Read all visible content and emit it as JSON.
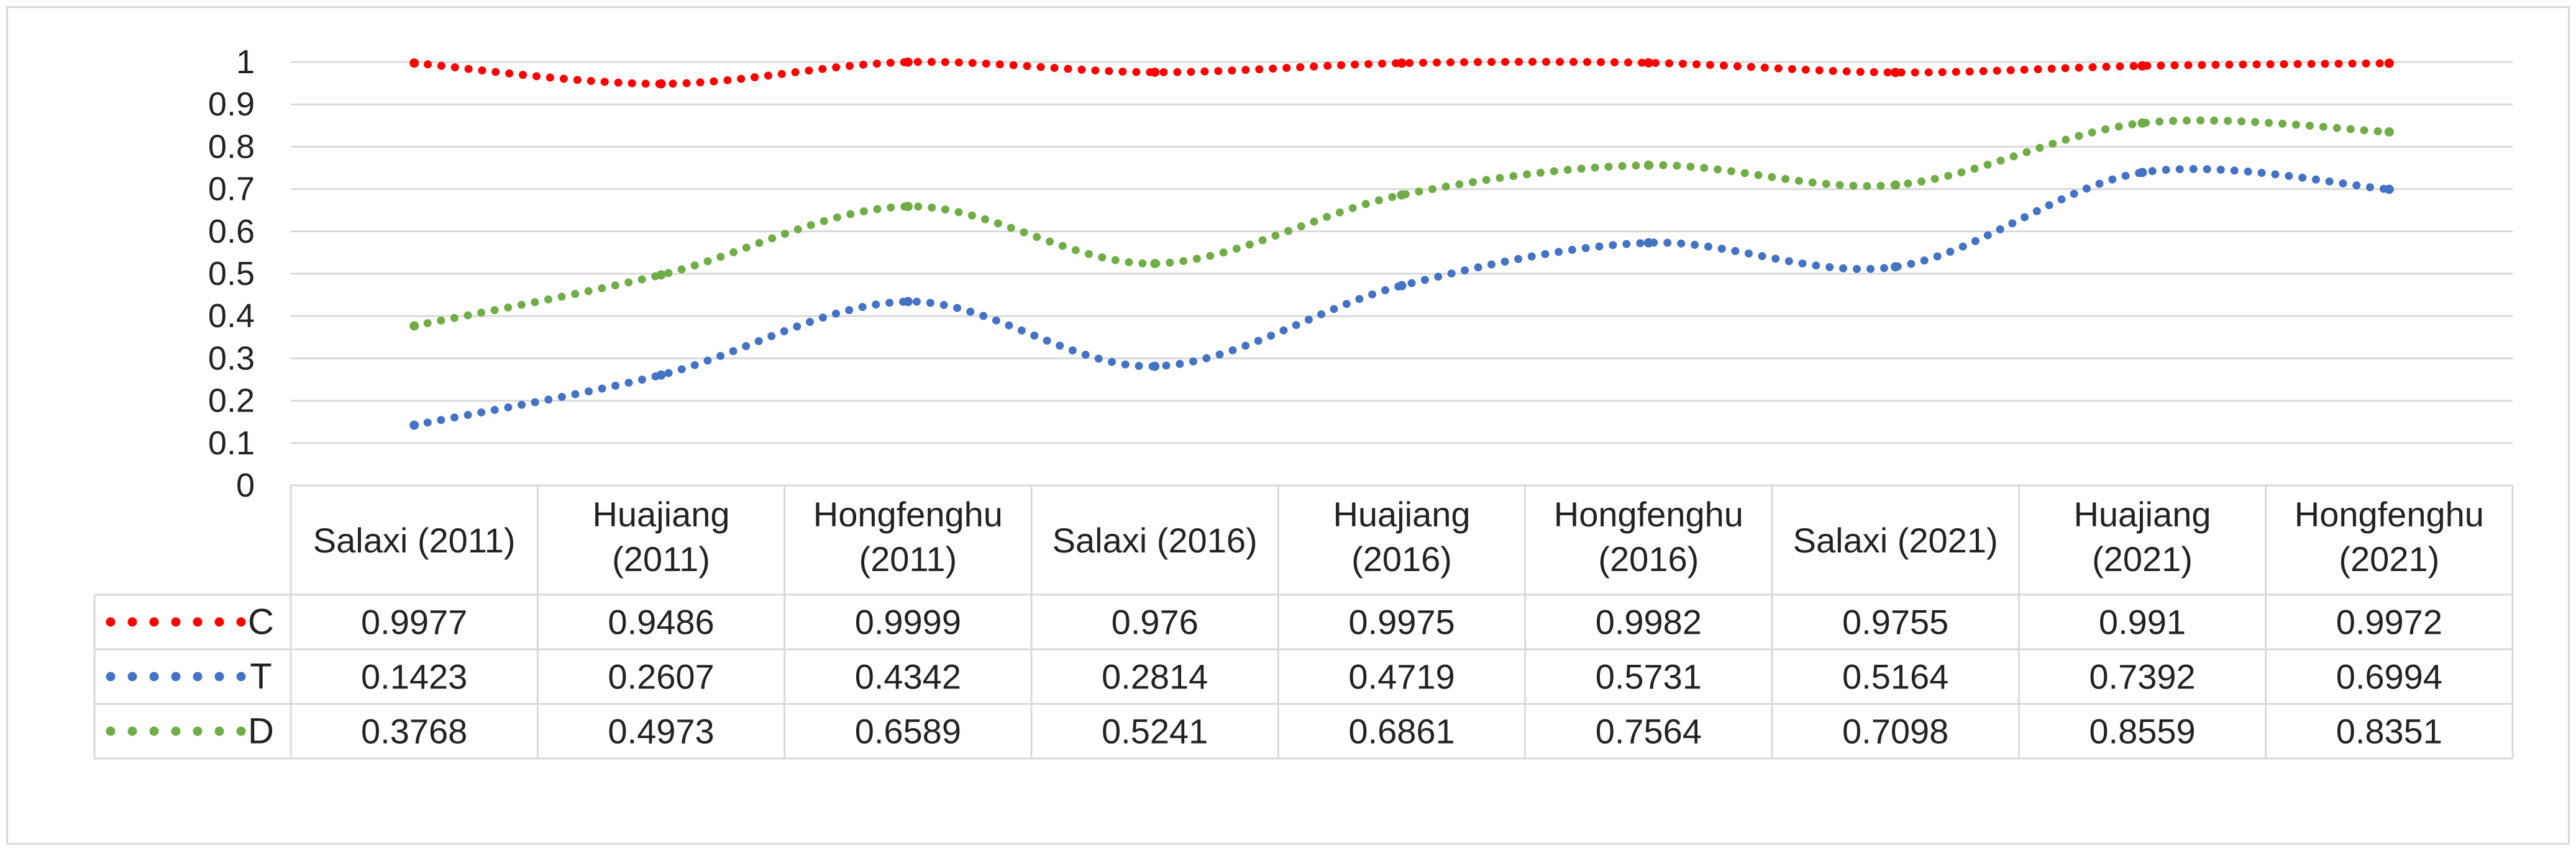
{
  "chart_data": {
    "type": "line",
    "title": "",
    "xlabel": "",
    "ylabel": "",
    "ylim": [
      0,
      1
    ],
    "yticks": [
      "0",
      "0.1",
      "0.2",
      "0.3",
      "0.4",
      "0.5",
      "0.6",
      "0.7",
      "0.8",
      "0.9",
      "1"
    ],
    "grid": true,
    "legend": "data-table-left",
    "line_style": "dotted-smooth",
    "categories": [
      "Salaxi (2011)",
      "Huajiang (2011)",
      "Hongfenghu (2011)",
      "Salaxi (2016)",
      "Huajiang (2016)",
      "Hongfenghu (2016)",
      "Salaxi (2021)",
      "Huajiang (2021)",
      "Hongfenghu (2021)"
    ],
    "series": [
      {
        "name": "C",
        "color": "#ff0000",
        "values": [
          0.9977,
          0.9486,
          0.9999,
          0.976,
          0.9975,
          0.9982,
          0.9755,
          0.991,
          0.9972
        ],
        "labels": [
          "0.9977",
          "0.9486",
          "0.9999",
          "0.976",
          "0.9975",
          "0.9982",
          "0.9755",
          "0.991",
          "0.9972"
        ]
      },
      {
        "name": "T",
        "color": "#4472c4",
        "values": [
          0.1423,
          0.2607,
          0.4342,
          0.2814,
          0.4719,
          0.5731,
          0.5164,
          0.7392,
          0.6994
        ],
        "labels": [
          "0.1423",
          "0.2607",
          "0.4342",
          "0.2814",
          "0.4719",
          "0.5731",
          "0.5164",
          "0.7392",
          "0.6994"
        ]
      },
      {
        "name": "D",
        "color": "#70ad47",
        "values": [
          0.3768,
          0.4973,
          0.6589,
          0.5241,
          0.6861,
          0.7564,
          0.7098,
          0.8559,
          0.8351
        ],
        "labels": [
          "0.3768",
          "0.4973",
          "0.6589",
          "0.5241",
          "0.6861",
          "0.7564",
          "0.7098",
          "0.8559",
          "0.8351"
        ]
      }
    ]
  }
}
